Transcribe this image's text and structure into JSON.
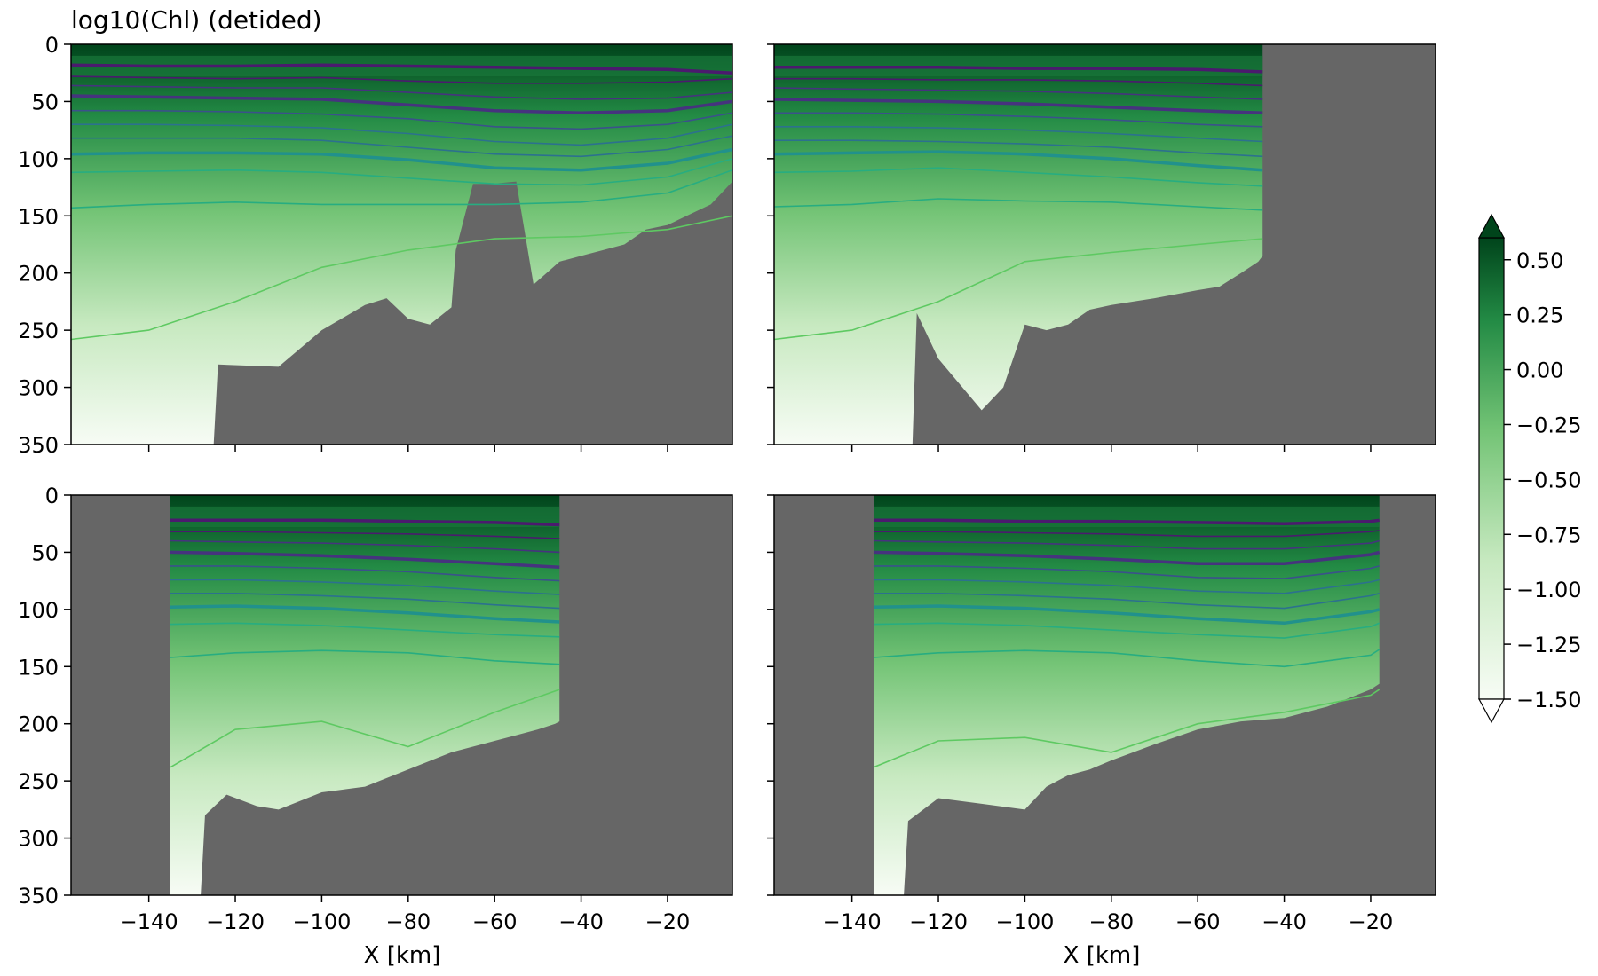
{
  "figure": {
    "title": "log10(Chl) (detided)",
    "xlabel": "X [km]"
  },
  "chart_data": {
    "type": "heatmap",
    "title": "log10(Chl) (detided)",
    "xlabel": "X [km]",
    "ylabel": "",
    "xlim": [
      -158,
      -5
    ],
    "ylim": [
      350,
      0
    ],
    "x_ticks": [
      -140,
      -120,
      -100,
      -80,
      -60,
      -40,
      -20
    ],
    "y_ticks": [
      0,
      50,
      100,
      150,
      200,
      250,
      300,
      350
    ],
    "colormap": "Greens",
    "land_color": "#666666",
    "colorbar": {
      "ticks": [
        0.5,
        0.25,
        0.0,
        -0.25,
        -0.5,
        -0.75,
        -1.0,
        -1.25,
        -1.5
      ],
      "tick_labels": [
        "0.50",
        "0.25",
        "0.00",
        "−0.25",
        "−0.50",
        "−0.75",
        "−1.00",
        "−1.25",
        "−1.50"
      ],
      "range": [
        -1.5,
        0.6
      ],
      "extend": "both"
    },
    "contour_colors": [
      "#4b1a6e",
      "#46337e",
      "#3b518b",
      "#2c718e",
      "#21918c",
      "#27ad81",
      "#5ec962"
    ],
    "panels": [
      {
        "id": "top-left",
        "water_x_range": [
          -158,
          -5
        ],
        "bathymetry": {
          "x": [
            -158,
            -125,
            -124,
            -110,
            -100,
            -90,
            -85,
            -80,
            -75,
            -70,
            -69,
            -65,
            -61,
            -55,
            -51,
            -45,
            -40,
            -35,
            -30,
            -25,
            -20,
            -10,
            -5
          ],
          "depth": [
            350,
            350,
            280,
            282,
            250,
            228,
            222,
            240,
            245,
            230,
            180,
            122,
            122,
            120,
            210,
            190,
            185,
            180,
            175,
            162,
            158,
            140,
            120
          ]
        },
        "contours": {
          "x": [
            -158,
            -140,
            -120,
            -100,
            -80,
            -60,
            -40,
            -20,
            -5
          ],
          "depths": [
            [
              18,
              19,
              19,
              18,
              19,
              20,
              21,
              22,
              25
            ],
            [
              28,
              29,
              30,
              29,
              32,
              34,
              34,
              33,
              30
            ],
            [
              36,
              37,
              38,
              38,
              42,
              46,
              48,
              47,
              42
            ],
            [
              45,
              46,
              47,
              48,
              53,
              58,
              60,
              58,
              50
            ],
            [
              58,
              58,
              59,
              61,
              65,
              72,
              74,
              70,
              60
            ],
            [
              70,
              70,
              71,
              73,
              78,
              85,
              88,
              82,
              70
            ],
            [
              82,
              82,
              82,
              84,
              90,
              96,
              98,
              92,
              80
            ],
            [
              96,
              95,
              95,
              96,
              101,
              108,
              110,
              104,
              92
            ],
            [
              112,
              111,
              110,
              112,
              117,
              122,
              123,
              116,
              100
            ],
            [
              143,
              140,
              138,
              140,
              140,
              140,
              138,
              130,
              110
            ],
            [
              258,
              250,
              225,
              195,
              180,
              170,
              168,
              162,
              150
            ]
          ]
        }
      },
      {
        "id": "top-right",
        "water_x_range": [
          -158,
          -45
        ],
        "bathymetry": {
          "x": [
            -158,
            -126,
            -125,
            -120,
            -110,
            -105,
            -100,
            -95,
            -90,
            -85,
            -80,
            -70,
            -60,
            -55,
            -50,
            -46,
            -45
          ],
          "depth": [
            350,
            350,
            235,
            275,
            320,
            300,
            245,
            250,
            245,
            232,
            228,
            222,
            215,
            212,
            200,
            190,
            185
          ]
        },
        "contours": {
          "x": [
            -158,
            -140,
            -120,
            -100,
            -80,
            -60,
            -45
          ],
          "depths": [
            [
              20,
              20,
              20,
              21,
              21,
              22,
              24
            ],
            [
              30,
              30,
              31,
              31,
              32,
              34,
              36
            ],
            [
              38,
              39,
              40,
              41,
              43,
              46,
              48
            ],
            [
              48,
              49,
              50,
              52,
              55,
              58,
              60
            ],
            [
              60,
              60,
              61,
              63,
              66,
              70,
              72
            ],
            [
              72,
              72,
              73,
              75,
              78,
              82,
              85
            ],
            [
              84,
              84,
              85,
              87,
              90,
              95,
              98
            ],
            [
              96,
              95,
              94,
              96,
              100,
              106,
              110
            ],
            [
              112,
              111,
              108,
              112,
              116,
              121,
              124
            ],
            [
              142,
              140,
              135,
              137,
              138,
              142,
              145
            ],
            [
              258,
              250,
              225,
              190,
              182,
              175,
              170
            ]
          ]
        }
      },
      {
        "id": "bottom-left",
        "water_x_range": [
          -135,
          -45
        ],
        "bathymetry": {
          "x": [
            -135,
            -128,
            -127,
            -122,
            -115,
            -110,
            -100,
            -90,
            -80,
            -70,
            -60,
            -55,
            -50,
            -46,
            -45
          ],
          "depth": [
            350,
            350,
            280,
            262,
            272,
            275,
            260,
            255,
            240,
            225,
            215,
            210,
            205,
            200,
            198
          ]
        },
        "contours": {
          "x": [
            -135,
            -120,
            -100,
            -80,
            -60,
            -45
          ],
          "depths": [
            [
              22,
              22,
              22,
              23,
              24,
              26
            ],
            [
              32,
              32,
              33,
              34,
              36,
              38
            ],
            [
              40,
              41,
              42,
              44,
              47,
              50
            ],
            [
              50,
              51,
              53,
              56,
              60,
              63
            ],
            [
              62,
              62,
              64,
              67,
              72,
              75
            ],
            [
              74,
              74,
              76,
              79,
              84,
              87
            ],
            [
              86,
              86,
              88,
              91,
              96,
              99
            ],
            [
              98,
              97,
              99,
              103,
              108,
              111
            ],
            [
              113,
              112,
              114,
              118,
              122,
              124
            ],
            [
              142,
              138,
              136,
              138,
              145,
              148
            ],
            [
              238,
              205,
              198,
              220,
              190,
              170
            ]
          ]
        }
      },
      {
        "id": "bottom-right",
        "water_x_range": [
          -135,
          -18
        ],
        "bathymetry": {
          "x": [
            -135,
            -128,
            -127,
            -120,
            -110,
            -100,
            -95,
            -90,
            -85,
            -80,
            -70,
            -60,
            -50,
            -40,
            -30,
            -20,
            -18
          ],
          "depth": [
            350,
            350,
            285,
            265,
            270,
            275,
            255,
            245,
            240,
            232,
            218,
            205,
            198,
            195,
            185,
            170,
            165
          ]
        },
        "contours": {
          "x": [
            -135,
            -120,
            -100,
            -80,
            -60,
            -40,
            -20,
            -18
          ],
          "depths": [
            [
              22,
              22,
              23,
              23,
              24,
              25,
              23,
              22
            ],
            [
              32,
              32,
              33,
              34,
              36,
              36,
              32,
              31
            ],
            [
              40,
              41,
              42,
              44,
              47,
              47,
              42,
              40
            ],
            [
              50,
              51,
              53,
              56,
              60,
              60,
              52,
              50
            ],
            [
              62,
              62,
              64,
              67,
              72,
              73,
              64,
              62
            ],
            [
              74,
              74,
              76,
              79,
              84,
              86,
              76,
              74
            ],
            [
              86,
              86,
              88,
              91,
              96,
              99,
              88,
              86
            ],
            [
              98,
              97,
              99,
              103,
              108,
              112,
              102,
              100
            ],
            [
              113,
              112,
              114,
              118,
              122,
              125,
              115,
              112
            ],
            [
              142,
              138,
              136,
              138,
              145,
              150,
              140,
              135
            ],
            [
              238,
              215,
              212,
              225,
              200,
              190,
              175,
              170
            ]
          ]
        }
      }
    ]
  }
}
